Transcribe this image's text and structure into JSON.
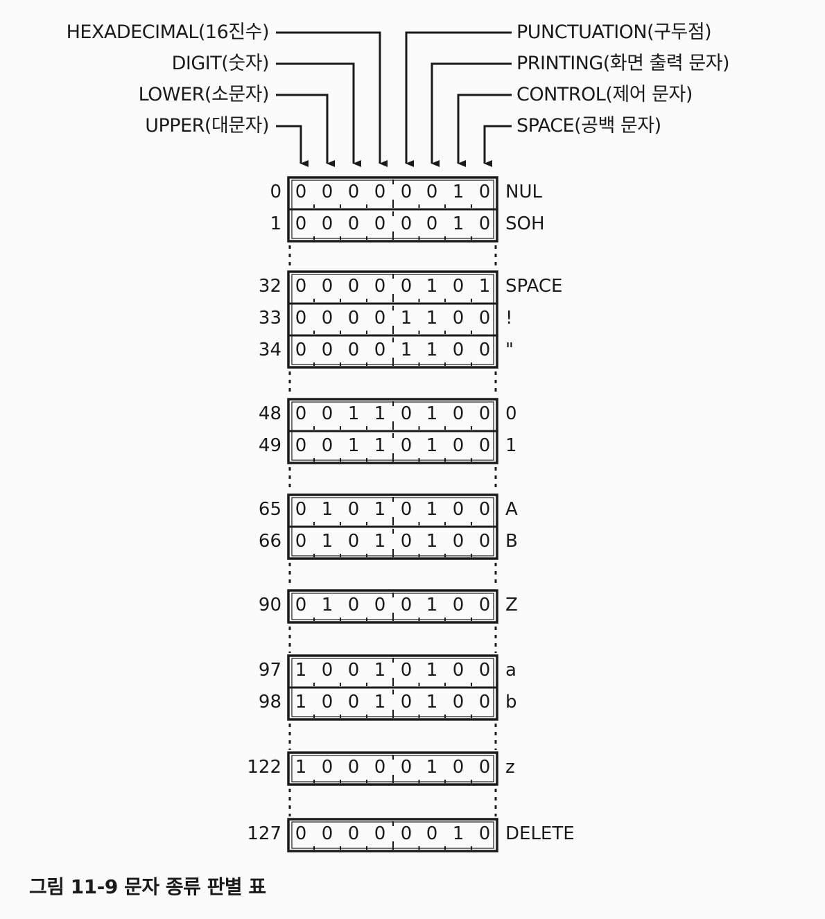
{
  "flag_labels": {
    "left": [
      {
        "id": "hexadecimal",
        "text": "HEXADECIMAL(16진수)"
      },
      {
        "id": "digit",
        "text": "DIGIT(숫자)"
      },
      {
        "id": "lower",
        "text": "LOWER(소문자)"
      },
      {
        "id": "upper",
        "text": "UPPER(대문자)"
      }
    ],
    "right": [
      {
        "id": "punctuation",
        "text": "PUNCTUATION(구두점)"
      },
      {
        "id": "printing",
        "text": "PRINTING(화면 출력 문자)"
      },
      {
        "id": "control",
        "text": "CONTROL(제어 문자)"
      },
      {
        "id": "space",
        "text": "SPACE(공백 문자)"
      }
    ]
  },
  "groups": [
    {
      "rows": [
        {
          "code": "0",
          "bits": "00000010",
          "char": "NUL"
        },
        {
          "code": "1",
          "bits": "00000010",
          "char": "SOH"
        }
      ]
    },
    {
      "rows": [
        {
          "code": "32",
          "bits": "00000101",
          "char": "SPACE"
        },
        {
          "code": "33",
          "bits": "00001100",
          "char": "!"
        },
        {
          "code": "34",
          "bits": "00001100",
          "char": "\""
        }
      ]
    },
    {
      "rows": [
        {
          "code": "48",
          "bits": "00110100",
          "char": "0"
        },
        {
          "code": "49",
          "bits": "00110100",
          "char": "1"
        }
      ]
    },
    {
      "rows": [
        {
          "code": "65",
          "bits": "01010100",
          "char": "A"
        },
        {
          "code": "66",
          "bits": "01010100",
          "char": "B"
        }
      ]
    },
    {
      "rows": [
        {
          "code": "90",
          "bits": "01000100",
          "char": "Z"
        }
      ]
    },
    {
      "rows": [
        {
          "code": "97",
          "bits": "10010100",
          "char": "a"
        },
        {
          "code": "98",
          "bits": "10010100",
          "char": "b"
        }
      ]
    },
    {
      "rows": [
        {
          "code": "122",
          "bits": "10000100",
          "char": "z"
        }
      ]
    },
    {
      "rows": [
        {
          "code": "127",
          "bits": "00000010",
          "char": "DELETE"
        }
      ]
    }
  ],
  "caption": "그림 11-9 문자 종류 판별 표"
}
